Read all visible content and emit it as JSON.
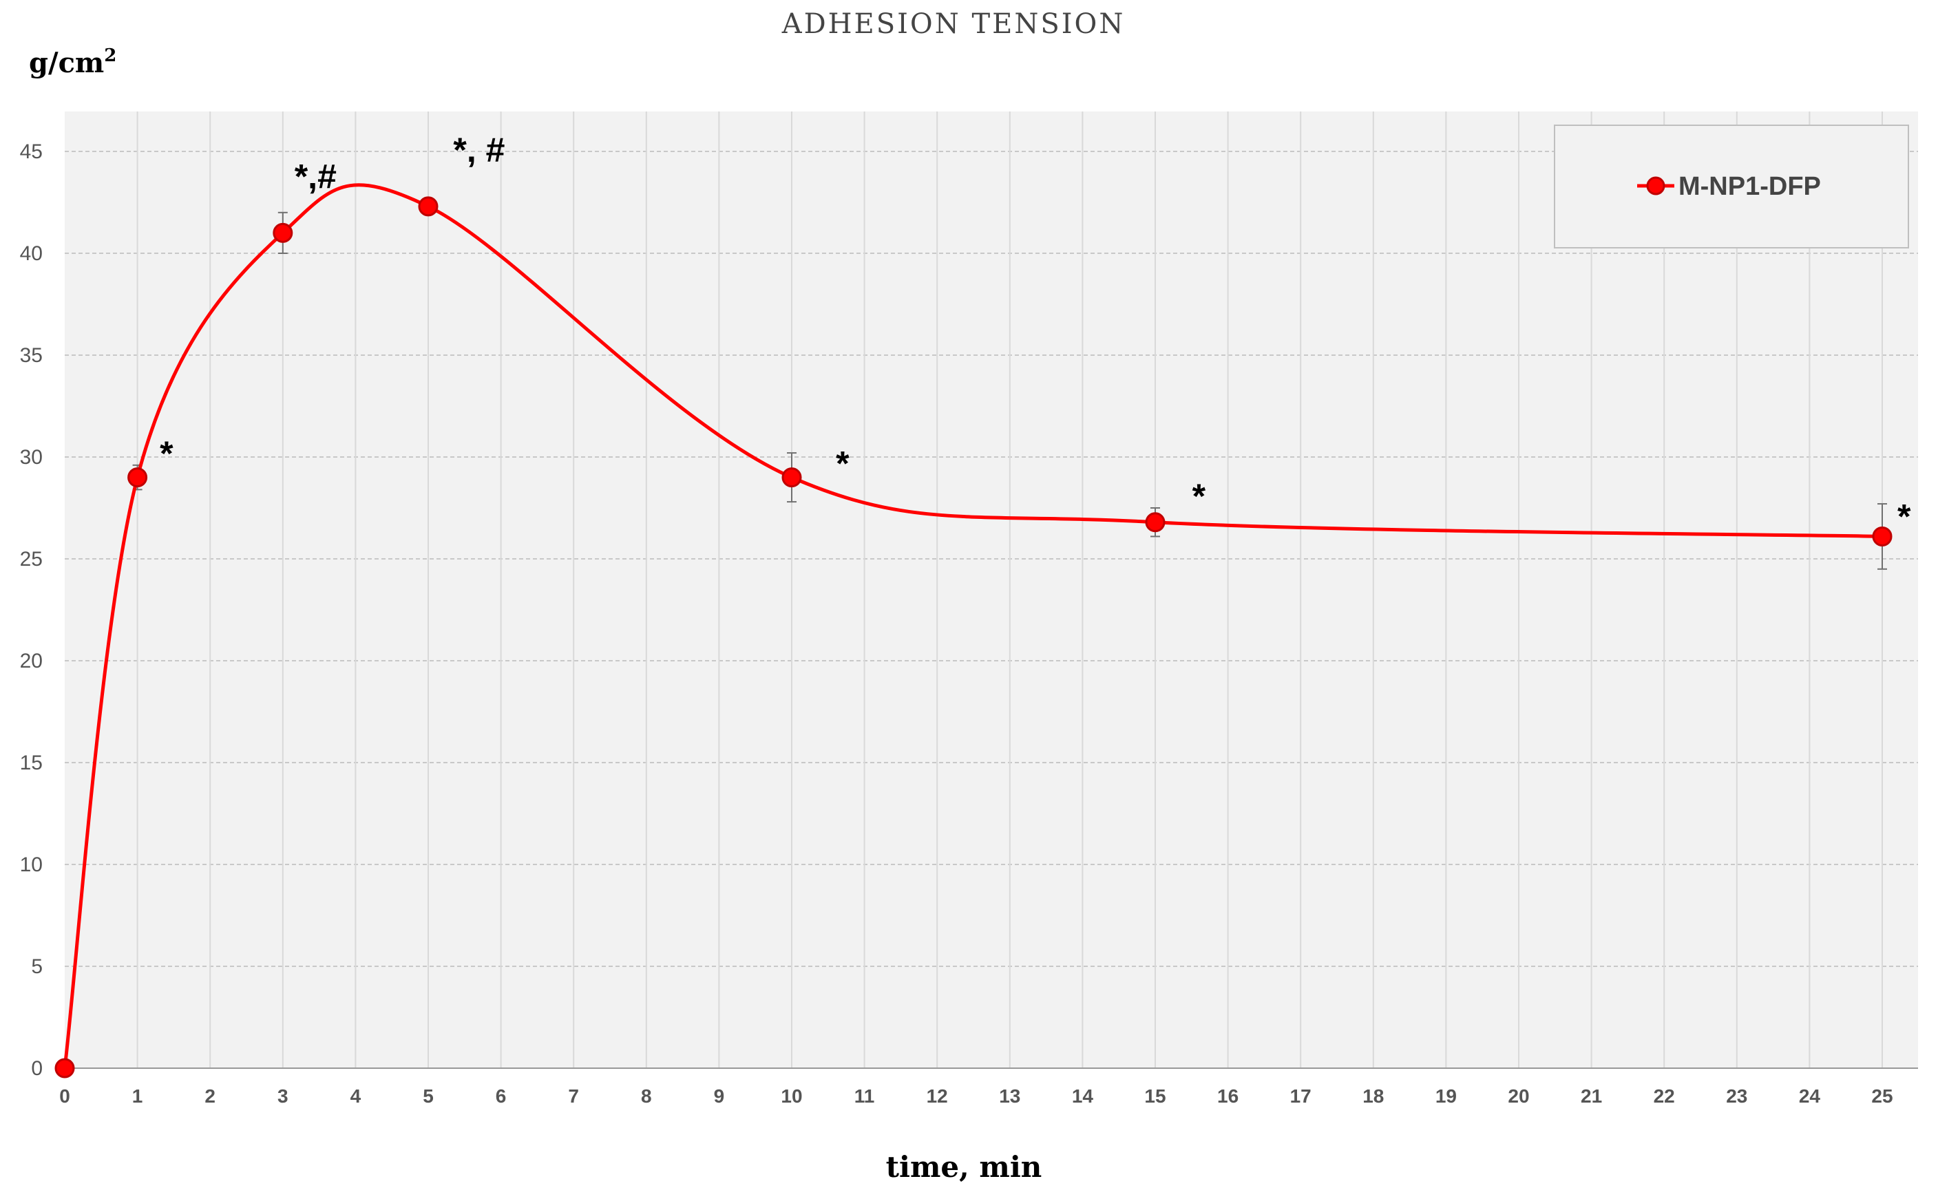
{
  "chart_data": {
    "type": "line",
    "title": "ADHESION TENSION",
    "ylabel_base": "g/cm",
    "ylabel_sup": "2",
    "xlabel": "time, min",
    "xlim": [
      0,
      25.5
    ],
    "ylim": [
      0,
      47
    ],
    "yticks": [
      "0",
      "5",
      "10",
      "15",
      "20",
      "25",
      "30",
      "35",
      "40",
      "45"
    ],
    "xticks": [
      "0",
      "1",
      "2",
      "3",
      "4",
      "5",
      "6",
      "7",
      "8",
      "9",
      "10",
      "11",
      "12",
      "13",
      "14",
      "15",
      "16",
      "17",
      "18",
      "19",
      "20",
      "21",
      "22",
      "23",
      "24",
      "25"
    ],
    "grid": true,
    "legend_position": "top-right",
    "colors": {
      "series": "#ff0000",
      "marker_edge": "#c00000",
      "plot_bg": "#f2f2f2",
      "grid": "#c8c8c8"
    },
    "series": [
      {
        "name": "M-NP1-DFP",
        "x": [
          0,
          1,
          3,
          5,
          10,
          15,
          25
        ],
        "y": [
          0,
          29,
          41,
          42.3,
          29,
          26.8,
          26.1
        ],
        "error": [
          0,
          0.6,
          1.0,
          0.4,
          1.2,
          0.7,
          1.6
        ]
      }
    ],
    "annotations": [
      {
        "text": "*",
        "x": 1.4,
        "y": 29.6
      },
      {
        "text": "*,#",
        "x": 3.45,
        "y": 43.2
      },
      {
        "text": "*, #",
        "x": 5.7,
        "y": 44.5
      },
      {
        "text": "*",
        "x": 10.7,
        "y": 29.1
      },
      {
        "text": "*",
        "x": 15.6,
        "y": 27.5
      },
      {
        "text": "*",
        "x": 25.3,
        "y": 26.5
      }
    ]
  }
}
